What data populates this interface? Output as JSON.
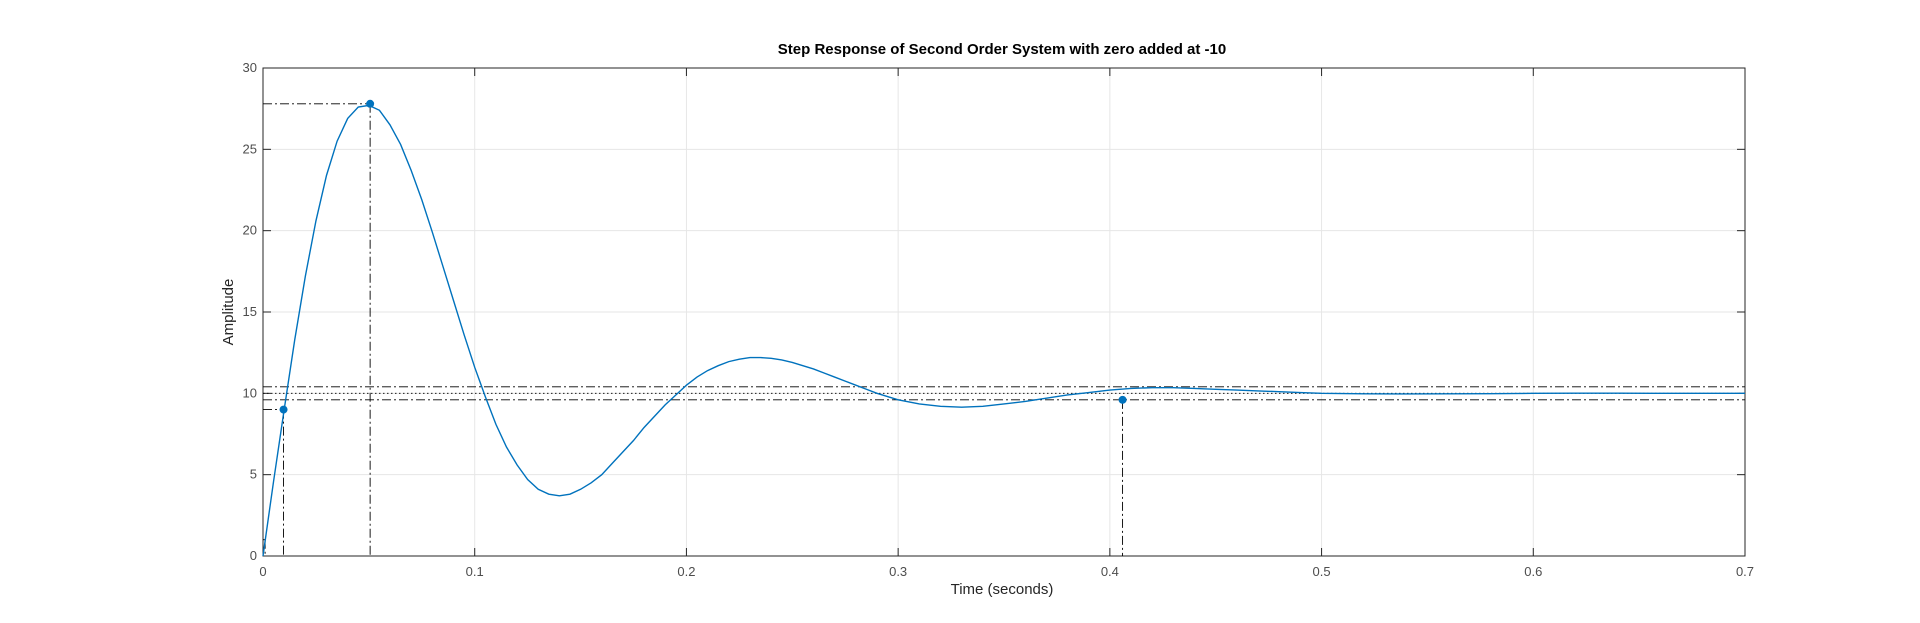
{
  "chart_data": {
    "type": "line",
    "title": "Step Response of Second Order System with zero added at -10",
    "xlabel": "Time (seconds)",
    "ylabel": "Amplitude",
    "xlim": [
      0,
      0.7
    ],
    "ylim": [
      0,
      30
    ],
    "x_ticks": [
      0,
      0.1,
      0.2,
      0.3,
      0.4,
      0.5,
      0.6,
      0.7
    ],
    "x_tick_labels": [
      "0",
      "0.1",
      "0.2",
      "0.3",
      "0.4",
      "0.5",
      "0.6",
      "0.7"
    ],
    "y_ticks": [
      0,
      5,
      10,
      15,
      20,
      25,
      30
    ],
    "y_tick_labels": [
      "0",
      "5",
      "10",
      "15",
      "20",
      "25",
      "30"
    ],
    "grid": true,
    "legend": "none",
    "series": [
      {
        "color": "#0072BD",
        "x": [
          0,
          0.005,
          0.01,
          0.015,
          0.02,
          0.025,
          0.03,
          0.035,
          0.04,
          0.045,
          0.05,
          0.055,
          0.06,
          0.065,
          0.07,
          0.075,
          0.08,
          0.085,
          0.09,
          0.095,
          0.1,
          0.105,
          0.11,
          0.115,
          0.12,
          0.125,
          0.13,
          0.135,
          0.14,
          0.145,
          0.15,
          0.155,
          0.16,
          0.165,
          0.17,
          0.175,
          0.18,
          0.185,
          0.19,
          0.195,
          0.2,
          0.205,
          0.21,
          0.215,
          0.22,
          0.225,
          0.23,
          0.235,
          0.24,
          0.245,
          0.25,
          0.255,
          0.26,
          0.265,
          0.27,
          0.275,
          0.28,
          0.285,
          0.29,
          0.295,
          0.3,
          0.31,
          0.32,
          0.33,
          0.34,
          0.35,
          0.36,
          0.37,
          0.38,
          0.39,
          0.4,
          0.41,
          0.42,
          0.43,
          0.44,
          0.45,
          0.46,
          0.47,
          0.48,
          0.49,
          0.5,
          0.52,
          0.54,
          0.56,
          0.58,
          0.6,
          0.62,
          0.64,
          0.66,
          0.68,
          0.7
        ],
        "y": [
          0,
          4.6,
          9.0,
          13.3,
          17.2,
          20.6,
          23.4,
          25.5,
          26.9,
          27.6,
          27.7,
          27.4,
          26.5,
          25.3,
          23.7,
          21.9,
          19.9,
          17.8,
          15.7,
          13.6,
          11.6,
          9.8,
          8.1,
          6.7,
          5.6,
          4.7,
          4.1,
          3.8,
          3.7,
          3.8,
          4.1,
          4.5,
          5.0,
          5.7,
          6.4,
          7.1,
          7.9,
          8.6,
          9.3,
          9.9,
          10.5,
          11.0,
          11.4,
          11.7,
          11.95,
          12.1,
          12.2,
          12.2,
          12.15,
          12.05,
          11.9,
          11.7,
          11.5,
          11.25,
          11.0,
          10.75,
          10.5,
          10.25,
          10.0,
          9.8,
          9.6,
          9.35,
          9.2,
          9.15,
          9.2,
          9.35,
          9.5,
          9.7,
          9.9,
          10.05,
          10.2,
          10.3,
          10.35,
          10.35,
          10.3,
          10.25,
          10.2,
          10.15,
          10.1,
          10.05,
          10.0,
          9.97,
          9.96,
          9.97,
          9.98,
          10.0,
          10.01,
          10.01,
          10.0,
          10.0,
          10.0
        ]
      }
    ],
    "reference_lines": [
      {
        "axis": "y",
        "value": 10,
        "style": "dotted"
      },
      {
        "axis": "y",
        "value": 10.4,
        "style": "dashdot"
      },
      {
        "axis": "y",
        "value": 9.6,
        "style": "dashdot"
      }
    ],
    "markers": [
      {
        "name": "rise-time-start-marker",
        "x": 0.001,
        "y": 1.0,
        "visible": false
      },
      {
        "name": "rise-time-end-marker",
        "x": 0.0097,
        "y": 9.0,
        "visible": true
      },
      {
        "name": "peak-marker",
        "x": 0.0506,
        "y": 27.8,
        "visible": true
      },
      {
        "name": "settling-time-marker",
        "x": 0.406,
        "y": 9.6,
        "visible": true
      }
    ],
    "colors": {
      "line": "#0072BD",
      "grid": "#e6e6e6",
      "axes": "#262626",
      "characteristic": "#000000"
    }
  }
}
